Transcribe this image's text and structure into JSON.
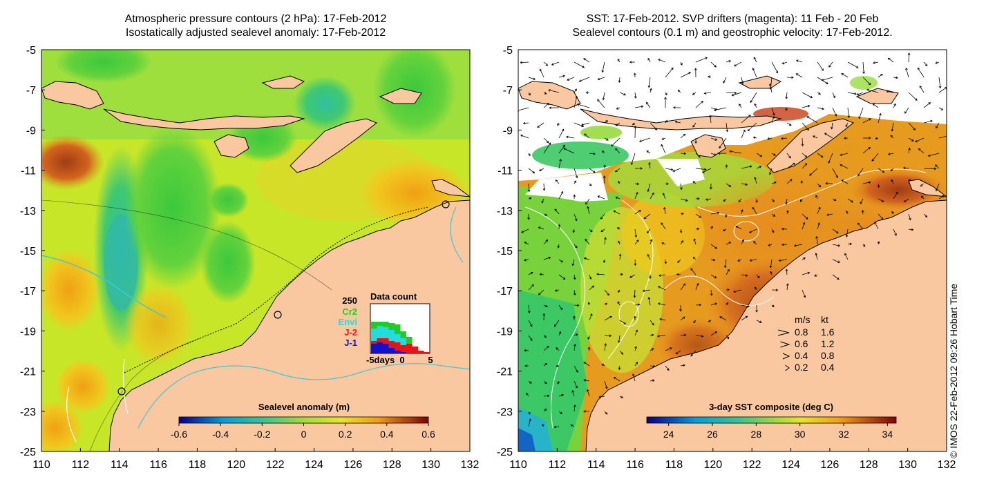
{
  "left_map": {
    "title_line1": "Atmospheric pressure contours (2 hPa): 17-Feb-2012",
    "title_line2": "Isostatically adjusted sealevel anomaly: 17-Feb-2012",
    "colorbar_title": "Sealevel anomaly (m)",
    "colorbar_ticks": [
      "-0.6",
      "-0.4",
      "-0.2",
      "0",
      "0.2",
      "0.4",
      "0.6"
    ],
    "data_count": {
      "title": "Data count",
      "ymax_label": "250",
      "legend": [
        {
          "label": "Cr2",
          "color": "#22cc22"
        },
        {
          "label": "Envi",
          "color": "#22dddd"
        },
        {
          "label": "J-2",
          "color": "#ee1111"
        },
        {
          "label": "J-1",
          "color": "#1111cc"
        }
      ],
      "xlabel": "-5days",
      "xticks": [
        "0",
        "5"
      ]
    }
  },
  "right_map": {
    "title_line1": "SST: 17-Feb-2012. SVP drifters (magenta): 11 Feb - 20 Feb",
    "title_line2": "Sealevel contours (0.1 m) and geostrophic velocity: 17-Feb-2012.",
    "colorbar_title": "3-day SST composite (deg C)",
    "colorbar_ticks": [
      "24",
      "26",
      "28",
      "30",
      "32",
      "34"
    ],
    "velocity_legend": {
      "header_ms": "m/s",
      "header_kt": "kt",
      "rows": [
        {
          "ms": "0.8",
          "kt": "1.6"
        },
        {
          "ms": "0.6",
          "kt": "1.2"
        },
        {
          "ms": "0.4",
          "kt": "0.8"
        },
        {
          "ms": "0.2",
          "kt": "0.4"
        }
      ]
    }
  },
  "axes": {
    "x_ticks": [
      "110",
      "112",
      "114",
      "116",
      "118",
      "120",
      "122",
      "124",
      "126",
      "128",
      "130",
      "132"
    ],
    "y_ticks": [
      "-5",
      "-7",
      "-9",
      "-11",
      "-13",
      "-15",
      "-17",
      "-19",
      "-21",
      "-23",
      "-25"
    ]
  },
  "credit": "© IMOS 22-Feb-2012 09:26 Hobart Time",
  "colors": {
    "land": "#f9c8a0",
    "sla_scale": [
      "#00008c",
      "#0050d0",
      "#00b4e0",
      "#3cd28c",
      "#96dc3c",
      "#e6e628",
      "#f0a014",
      "#c83c14",
      "#820000"
    ],
    "sst_scale": [
      "#00008c",
      "#0050d0",
      "#00b4e0",
      "#3cd28c",
      "#96dc3c",
      "#e6e628",
      "#f0a014",
      "#c83c14",
      "#820000"
    ]
  }
}
